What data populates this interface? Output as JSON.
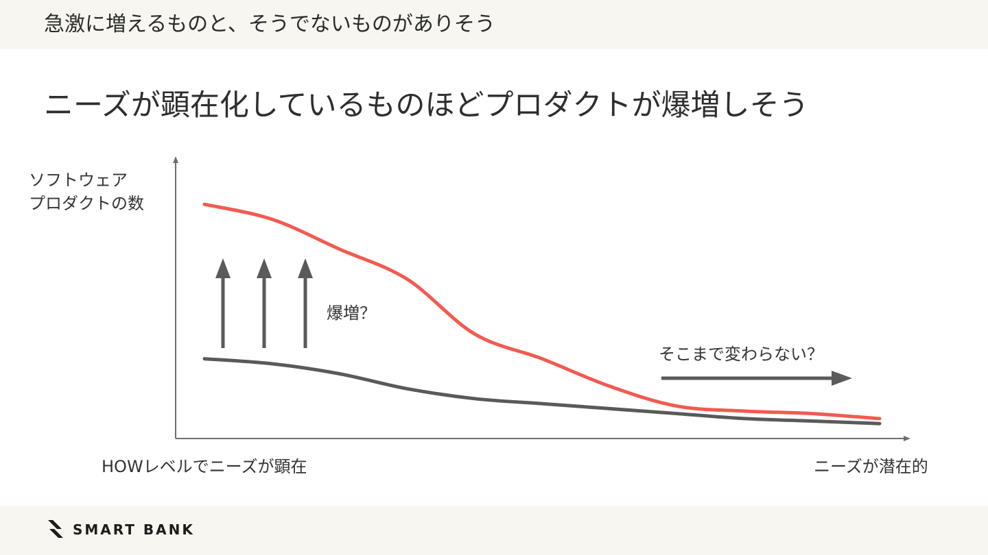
{
  "header": {
    "title": "急激に増えるものと、そうでないものがありそう"
  },
  "headline": "ニーズが顕在化しているものほどプロダクトが爆増しそう",
  "chart_data": {
    "type": "line",
    "ylabel_lines": [
      "ソフトウェア",
      "プロダクトの数"
    ],
    "xlabel_left": "HOWレベルでニーズが顕在",
    "xlabel_right": "ニーズが潜在的",
    "x": [
      0,
      10,
      20,
      30,
      40,
      50,
      60,
      70,
      80,
      90,
      100
    ],
    "series": [
      {
        "color": "#f25a50",
        "values": [
          94,
          88,
          76,
          64,
          42,
          32,
          21,
          13,
          11,
          10,
          8
        ]
      },
      {
        "color": "#5a5a5a",
        "values": [
          32,
          30,
          26,
          20,
          16,
          14,
          12,
          10,
          8,
          7,
          6
        ]
      }
    ],
    "ylim": [
      0,
      110
    ],
    "grid": false,
    "annotations": {
      "surge": "爆増？",
      "unchanged": "そこまで変わらない？"
    },
    "up_arrow_count": 3
  },
  "footer": {
    "logo_text": "SMART BANK"
  },
  "colors": {
    "band": "#f7f6f1",
    "axis": "#6e6e6e",
    "arrow": "#5a5a5a"
  }
}
